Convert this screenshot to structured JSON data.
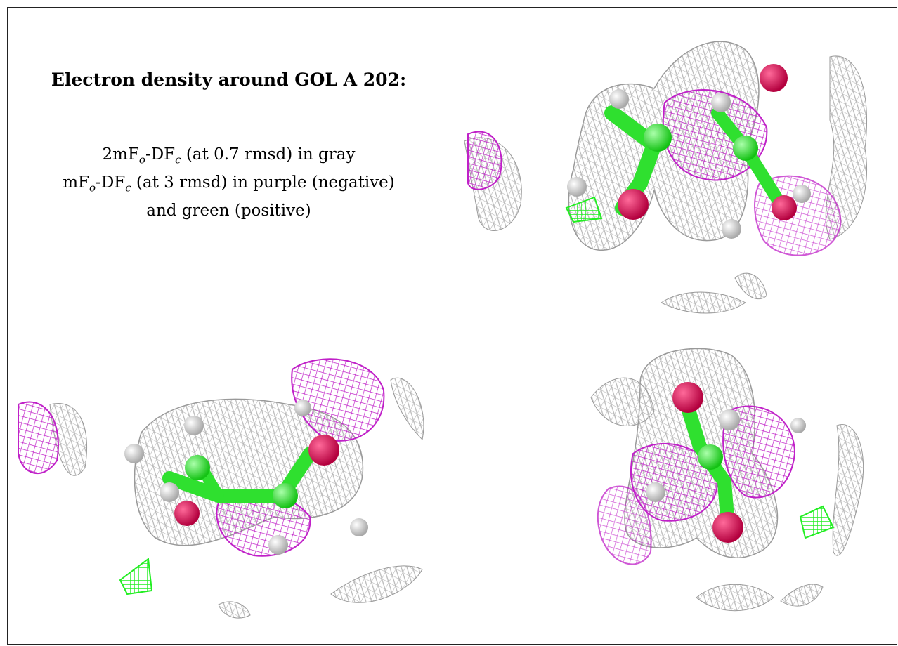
{
  "panel_text": {
    "heading": "Electron density around GOL A 202:",
    "line1": {
      "prefix": "2mF",
      "sub1": "o",
      "mid": "-DF",
      "sub2": "c",
      "suffix": " (at 0.7 rmsd) in gray"
    },
    "line2": {
      "prefix": "mF",
      "sub1": "o",
      "mid": "-DF",
      "sub2": "c",
      "suffix": " (at 3 rmsd) in purple (negative)"
    },
    "line3": "and green (positive)"
  },
  "colors": {
    "gray_mesh": "#b8b8b8",
    "purple_mesh": "#c020c8",
    "green_mesh": "#22ee22",
    "oxygen": "#e8175d",
    "carbon": "#3cf03c",
    "hydrogen": "#e6e6e6"
  }
}
